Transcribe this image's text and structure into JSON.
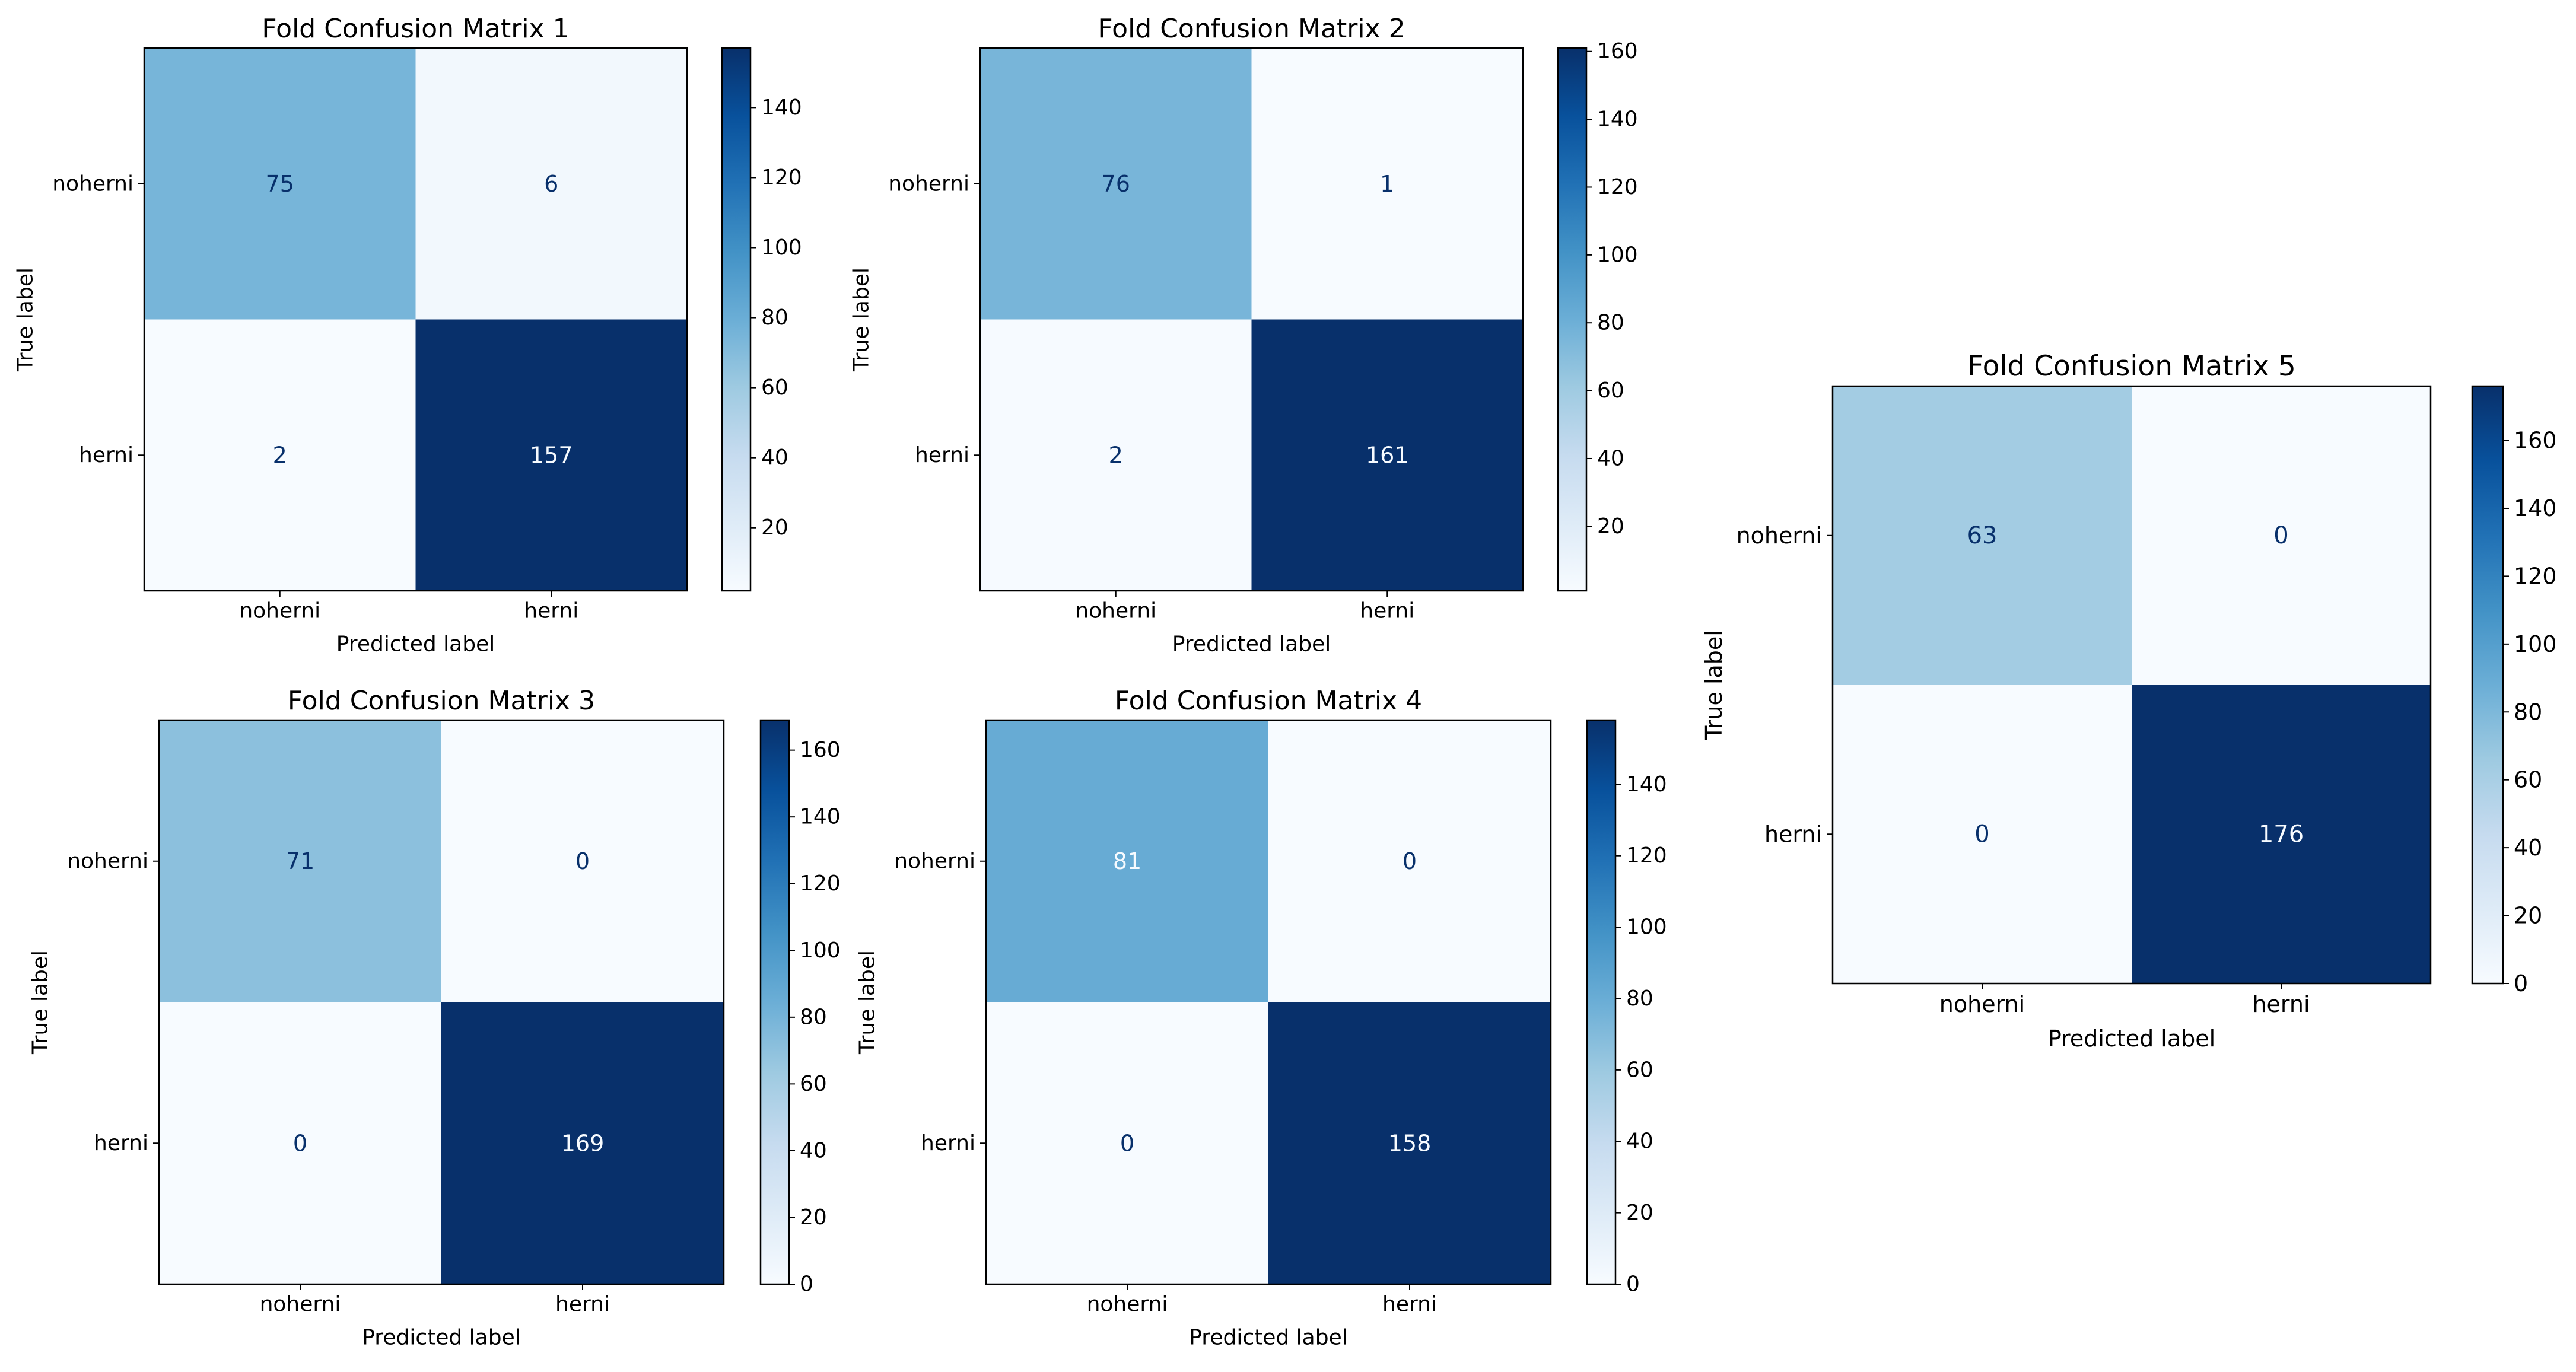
{
  "chart_data": [
    {
      "type": "heatmap",
      "title": "Fold Confusion Matrix 1",
      "xlabel": "Predicted label",
      "ylabel": "True label",
      "x_categories": [
        "noherni",
        "herni"
      ],
      "y_categories": [
        "noherni",
        "herni"
      ],
      "values": [
        [
          75,
          6
        ],
        [
          2,
          157
        ]
      ],
      "colorbar": {
        "range": [
          2,
          157
        ],
        "ticks": [
          20,
          40,
          60,
          80,
          100,
          120,
          140
        ]
      },
      "colormap": "Blues"
    },
    {
      "type": "heatmap",
      "title": "Fold Confusion Matrix 2",
      "xlabel": "Predicted label",
      "ylabel": "True label",
      "x_categories": [
        "noherni",
        "herni"
      ],
      "y_categories": [
        "noherni",
        "herni"
      ],
      "values": [
        [
          76,
          1
        ],
        [
          2,
          161
        ]
      ],
      "colorbar": {
        "range": [
          1,
          161
        ],
        "ticks": [
          20,
          40,
          60,
          80,
          100,
          120,
          140,
          160
        ]
      },
      "colormap": "Blues"
    },
    {
      "type": "heatmap",
      "title": "Fold Confusion Matrix 3",
      "xlabel": "Predicted label",
      "ylabel": "True label",
      "x_categories": [
        "noherni",
        "herni"
      ],
      "y_categories": [
        "noherni",
        "herni"
      ],
      "values": [
        [
          71,
          0
        ],
        [
          0,
          169
        ]
      ],
      "colorbar": {
        "range": [
          0,
          169
        ],
        "ticks": [
          0,
          20,
          40,
          60,
          80,
          100,
          120,
          140,
          160
        ]
      },
      "colormap": "Blues"
    },
    {
      "type": "heatmap",
      "title": "Fold Confusion Matrix 4",
      "xlabel": "Predicted label",
      "ylabel": "True label",
      "x_categories": [
        "noherni",
        "herni"
      ],
      "y_categories": [
        "noherni",
        "herni"
      ],
      "values": [
        [
          81,
          0
        ],
        [
          0,
          158
        ]
      ],
      "colorbar": {
        "range": [
          0,
          158
        ],
        "ticks": [
          0,
          20,
          40,
          60,
          80,
          100,
          120,
          140
        ]
      },
      "colormap": "Blues"
    },
    {
      "type": "heatmap",
      "title": "Fold Confusion Matrix 5",
      "xlabel": "Predicted label",
      "ylabel": "True label",
      "x_categories": [
        "noherni",
        "herni"
      ],
      "y_categories": [
        "noherni",
        "herni"
      ],
      "values": [
        [
          63,
          0
        ],
        [
          0,
          176
        ]
      ],
      "colorbar": {
        "range": [
          0,
          176
        ],
        "ticks": [
          0,
          20,
          40,
          60,
          80,
          100,
          120,
          140,
          160
        ]
      },
      "colormap": "Blues"
    }
  ]
}
